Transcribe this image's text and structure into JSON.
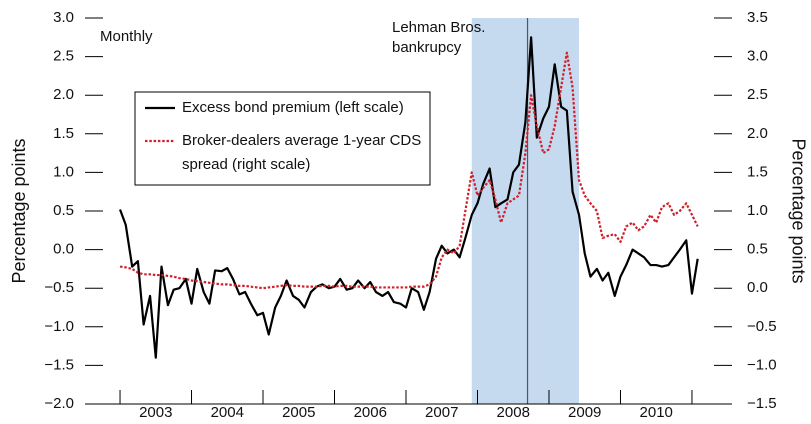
{
  "chart_data": {
    "type": "line",
    "title": "Monthly",
    "y_label": "Percentage points",
    "y2_label": "Percentage points",
    "annotation": "Lehman Bros. bankrupcy",
    "event_x": 2008.7,
    "shaded_region": [
      2007.92,
      2009.42
    ],
    "shade_color": "#c5d9ef",
    "xlim": [
      2002.51,
      2011.56
    ],
    "xticks": [
      2003,
      2004,
      2005,
      2006,
      2007,
      2008,
      2009,
      2010,
      2011
    ],
    "xtick_labels": [
      {
        "value": 2003.5,
        "label": "2003"
      },
      {
        "value": 2004.5,
        "label": "2004"
      },
      {
        "value": 2005.5,
        "label": "2005"
      },
      {
        "value": 2006.5,
        "label": "2006"
      },
      {
        "value": 2007.5,
        "label": "2007"
      },
      {
        "value": 2008.5,
        "label": "2008"
      },
      {
        "value": 2009.5,
        "label": "2009"
      },
      {
        "value": 2010.5,
        "label": "2010"
      }
    ],
    "ylim": [
      -2.0,
      3.0
    ],
    "yticks": [
      {
        "value": -2,
        "label": "−2.0"
      },
      {
        "value": -1.5,
        "label": "−1.5"
      },
      {
        "value": -1,
        "label": "−1.0"
      },
      {
        "value": -0.5,
        "label": "−0.5"
      },
      {
        "value": 0,
        "label": "0.0"
      },
      {
        "value": 0.5,
        "label": "0.5"
      },
      {
        "value": 1,
        "label": "1.0"
      },
      {
        "value": 1.5,
        "label": "1.5"
      },
      {
        "value": 2,
        "label": "2.0"
      },
      {
        "value": 2.5,
        "label": "2.5"
      },
      {
        "value": 3,
        "label": "3.0"
      }
    ],
    "y2lim": [
      -1.5,
      3.5
    ],
    "y2ticks": [
      {
        "value": -1.5,
        "label": "−1.5"
      },
      {
        "value": -1,
        "label": "−1.0"
      },
      {
        "value": -0.5,
        "label": "−0.5"
      },
      {
        "value": 0,
        "label": "0.0"
      },
      {
        "value": 0.5,
        "label": "0.5"
      },
      {
        "value": 1,
        "label": "1.0"
      },
      {
        "value": 1.5,
        "label": "1.5"
      },
      {
        "value": 2,
        "label": "2.0"
      },
      {
        "value": 2.5,
        "label": "2.5"
      },
      {
        "value": 3,
        "label": "3.0"
      },
      {
        "value": 3.5,
        "label": "3.5"
      }
    ],
    "x": [
      2003,
      2003.08,
      2003.17,
      2003.25,
      2003.33,
      2003.42,
      2003.5,
      2003.58,
      2003.67,
      2003.75,
      2003.83,
      2003.92,
      2004,
      2004.08,
      2004.17,
      2004.25,
      2004.33,
      2004.42,
      2004.5,
      2004.58,
      2004.67,
      2004.75,
      2004.83,
      2004.92,
      2005,
      2005.08,
      2005.17,
      2005.25,
      2005.33,
      2005.42,
      2005.5,
      2005.58,
      2005.67,
      2005.75,
      2005.83,
      2005.92,
      2006,
      2006.08,
      2006.17,
      2006.25,
      2006.33,
      2006.42,
      2006.5,
      2006.58,
      2006.67,
      2006.75,
      2006.83,
      2006.92,
      2007,
      2007.08,
      2007.17,
      2007.25,
      2007.33,
      2007.42,
      2007.5,
      2007.58,
      2007.67,
      2007.75,
      2007.83,
      2007.92,
      2008,
      2008.08,
      2008.17,
      2008.25,
      2008.33,
      2008.42,
      2008.5,
      2008.58,
      2008.67,
      2008.75,
      2008.83,
      2008.92,
      2009,
      2009.08,
      2009.17,
      2009.25,
      2009.33,
      2009.42,
      2009.5,
      2009.58,
      2009.67,
      2009.75,
      2009.83,
      2009.92,
      2010,
      2010.08,
      2010.17,
      2010.25,
      2010.33,
      2010.42,
      2010.5,
      2010.58,
      2010.67,
      2010.75,
      2010.83,
      2010.92,
      2011,
      2011.08
    ],
    "series": [
      {
        "name": "Excess bond premium (left scale)",
        "color": "#000000",
        "style": "solid",
        "axis": "y",
        "values": [
          0.52,
          0.32,
          -0.22,
          -0.15,
          -0.97,
          -0.6,
          -1.4,
          -0.22,
          -0.72,
          -0.52,
          -0.5,
          -0.38,
          -0.7,
          -0.25,
          -0.55,
          -0.7,
          -0.27,
          -0.28,
          -0.24,
          -0.38,
          -0.58,
          -0.55,
          -0.7,
          -0.85,
          -0.82,
          -1.1,
          -0.75,
          -0.6,
          -0.4,
          -0.6,
          -0.65,
          -0.75,
          -0.55,
          -0.48,
          -0.45,
          -0.5,
          -0.48,
          -0.38,
          -0.52,
          -0.5,
          -0.4,
          -0.5,
          -0.42,
          -0.55,
          -0.6,
          -0.55,
          -0.68,
          -0.7,
          -0.75,
          -0.5,
          -0.55,
          -0.78,
          -0.55,
          -0.12,
          0.05,
          -0.05,
          0.0,
          -0.1,
          0.15,
          0.45,
          0.6,
          0.85,
          1.05,
          0.55,
          0.6,
          0.65,
          1.0,
          1.1,
          1.65,
          2.75,
          1.45,
          1.7,
          1.85,
          2.4,
          1.85,
          1.8,
          0.75,
          0.45,
          -0.05,
          -0.35,
          -0.25,
          -0.4,
          -0.3,
          -0.6,
          -0.35,
          -0.2,
          0.0,
          -0.05,
          -0.1,
          -0.2,
          -0.2,
          -0.22,
          -0.2,
          -0.1,
          0.0,
          0.12,
          -0.57,
          -0.12
        ]
      },
      {
        "name": "Broker-dealers average 1-year CDS spread (right scale)",
        "color": "#d0202a",
        "style": "dotted",
        "axis": "y2",
        "values": [
          0.28,
          0.27,
          0.25,
          0.2,
          0.18,
          0.18,
          0.17,
          0.17,
          0.16,
          0.15,
          0.13,
          0.12,
          0.1,
          0.09,
          0.08,
          0.07,
          0.06,
          0.05,
          0.05,
          0.04,
          0.03,
          0.03,
          0.02,
          0.01,
          0.0,
          0.01,
          0.02,
          0.03,
          0.04,
          0.03,
          0.03,
          0.02,
          0.02,
          0.02,
          0.03,
          0.03,
          0.02,
          0.03,
          0.03,
          0.02,
          0.02,
          0.02,
          0.02,
          0.01,
          0.01,
          0.01,
          0.01,
          0.01,
          0.01,
          0.02,
          0.02,
          0.02,
          0.05,
          0.15,
          0.4,
          0.5,
          0.45,
          0.55,
          1.0,
          1.5,
          1.2,
          1.3,
          1.4,
          1.15,
          0.85,
          1.1,
          1.15,
          1.2,
          1.75,
          2.5,
          2.1,
          1.75,
          1.8,
          2.1,
          2.6,
          3.05,
          2.6,
          1.4,
          1.2,
          1.1,
          1.0,
          0.65,
          0.68,
          0.7,
          0.6,
          0.8,
          0.85,
          0.75,
          0.8,
          0.95,
          0.85,
          1.05,
          1.1,
          0.95,
          1.0,
          1.1,
          0.95,
          0.8
        ]
      }
    ]
  }
}
